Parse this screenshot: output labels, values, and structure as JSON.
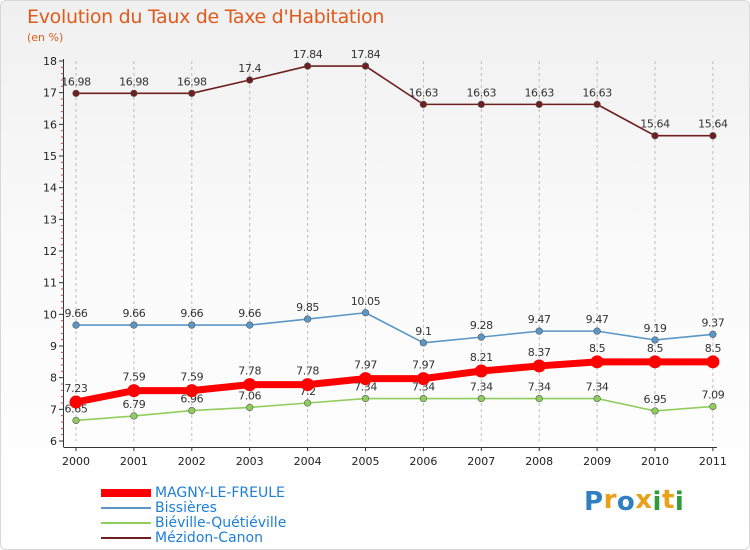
{
  "header": {
    "title": "Evolution du Taux de Taxe d'Habitation",
    "subtitle": "(en %)"
  },
  "logo": {
    "letters": [
      {
        "char": "P",
        "color": "#2f7fc1"
      },
      {
        "char": "r",
        "color": "#e8a21a"
      },
      {
        "char": "o",
        "color": "#2f7fc1"
      },
      {
        "char": "x",
        "color": "#e8a21a"
      },
      {
        "char": "i",
        "color": "#2f9b3d"
      },
      {
        "char": "t",
        "color": "#e8a21a"
      },
      {
        "char": "i",
        "color": "#2f9b3d"
      }
    ]
  },
  "chart_data": {
    "type": "line",
    "title": "Evolution du Taux de Taxe d'Habitation",
    "ylabel": "(en %)",
    "xlabel": "",
    "ylim": [
      6,
      18
    ],
    "yticks": [
      "6",
      "7",
      "8",
      "9",
      "10",
      "11",
      "12",
      "13",
      "14",
      "15",
      "16",
      "17",
      "18"
    ],
    "x": [
      "2000",
      "2001",
      "2002",
      "2003",
      "2004",
      "2005",
      "2006",
      "2007",
      "2008",
      "2009",
      "2010",
      "2011"
    ],
    "grid": "vertical dashed",
    "legend_position": "bottom-left",
    "series": [
      {
        "name": "Mézidon-Canon",
        "color": "#6e1f1f",
        "values": [
          16.98,
          16.98,
          16.98,
          17.4,
          17.84,
          17.84,
          16.63,
          16.63,
          16.63,
          16.63,
          15.64,
          15.64
        ],
        "labels": [
          "16.98",
          "16.98",
          "16.98",
          "17.4",
          "17.84",
          "17.84",
          "16.63",
          "16.63",
          "16.63",
          "16.63",
          "15.64",
          "15.64"
        ]
      },
      {
        "name": "Bissières",
        "color": "#5b97c6",
        "values": [
          9.66,
          9.66,
          9.66,
          9.66,
          9.85,
          10.05,
          9.1,
          9.28,
          9.47,
          9.47,
          9.19,
          9.37
        ],
        "labels": [
          "9.66",
          "9.66",
          "9.66",
          "9.66",
          "9.85",
          "10.05",
          "9.1",
          "9.28",
          "9.47",
          "9.47",
          "9.19",
          "9.37"
        ]
      },
      {
        "name": "Biéville-Quétiéville",
        "color": "#8fce5c",
        "values": [
          6.65,
          6.79,
          6.96,
          7.06,
          7.2,
          7.34,
          7.34,
          7.34,
          7.34,
          7.34,
          6.95,
          7.09
        ],
        "labels": [
          "6.65",
          "6.79",
          "6.96",
          "7.06",
          "7.2",
          "7.34",
          "7.34",
          "7.34",
          "7.34",
          "7.34",
          "6.95",
          "7.09"
        ]
      },
      {
        "name": "MAGNY-LE-FREULE",
        "color": "#ff0000",
        "values": [
          7.23,
          7.59,
          7.59,
          7.78,
          7.78,
          7.97,
          7.97,
          8.21,
          8.37,
          8.5,
          8.5,
          8.5
        ],
        "labels": [
          "7.23",
          "7.59",
          "7.59",
          "7.78",
          "7.78",
          "7.97",
          "7.97",
          "8.21",
          "8.37",
          "8.5",
          "8.5",
          "8.5"
        ]
      }
    ],
    "legend_order": [
      "MAGNY-LE-FREULE",
      "Bissières",
      "Biéville-Quétiéville",
      "Mézidon-Canon"
    ]
  }
}
